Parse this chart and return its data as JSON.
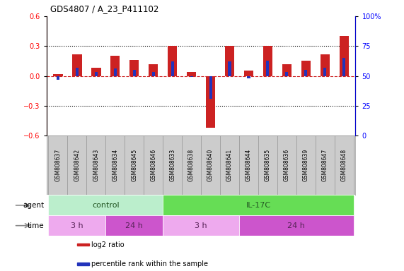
{
  "title": "GDS4807 / A_23_P411102",
  "samples": [
    "GSM808637",
    "GSM808642",
    "GSM808643",
    "GSM808634",
    "GSM808645",
    "GSM808646",
    "GSM808633",
    "GSM808638",
    "GSM808640",
    "GSM808641",
    "GSM808644",
    "GSM808635",
    "GSM808636",
    "GSM808639",
    "GSM808647",
    "GSM808648"
  ],
  "log2_ratio": [
    0.02,
    0.22,
    0.08,
    0.2,
    0.16,
    0.12,
    0.3,
    0.04,
    -0.52,
    0.3,
    0.05,
    0.3,
    0.12,
    0.15,
    0.22,
    0.4
  ],
  "percentile_rank": [
    47,
    57,
    53,
    56,
    55,
    53,
    62,
    49,
    31,
    62,
    48,
    63,
    53,
    55,
    57,
    65
  ],
  "ylim": [
    -0.6,
    0.6
  ],
  "yticks_left": [
    -0.6,
    -0.3,
    0.0,
    0.3,
    0.6
  ],
  "yticks_right": [
    0,
    25,
    50,
    75,
    100
  ],
  "bar_color_red": "#cc2222",
  "bar_color_blue": "#2233bb",
  "dashed_line_color": "#cc2222",
  "agent_groups": [
    {
      "label": "control",
      "start": 0,
      "end": 6,
      "color": "#bbeecc"
    },
    {
      "label": "IL-17C",
      "start": 6,
      "end": 16,
      "color": "#66dd55"
    }
  ],
  "time_groups": [
    {
      "label": "3 h",
      "start": 0,
      "end": 3,
      "color": "#eeaaee"
    },
    {
      "label": "24 h",
      "start": 3,
      "end": 6,
      "color": "#cc55cc"
    },
    {
      "label": "3 h",
      "start": 6,
      "end": 10,
      "color": "#eeaaee"
    },
    {
      "label": "24 h",
      "start": 10,
      "end": 16,
      "color": "#cc55cc"
    }
  ],
  "agent_label": "agent",
  "time_label": "time",
  "legend_items": [
    {
      "label": "log2 ratio",
      "color": "#cc2222"
    },
    {
      "label": "percentile rank within the sample",
      "color": "#2233bb"
    }
  ],
  "sample_box_color": "#cccccc",
  "sample_box_edge": "#999999"
}
